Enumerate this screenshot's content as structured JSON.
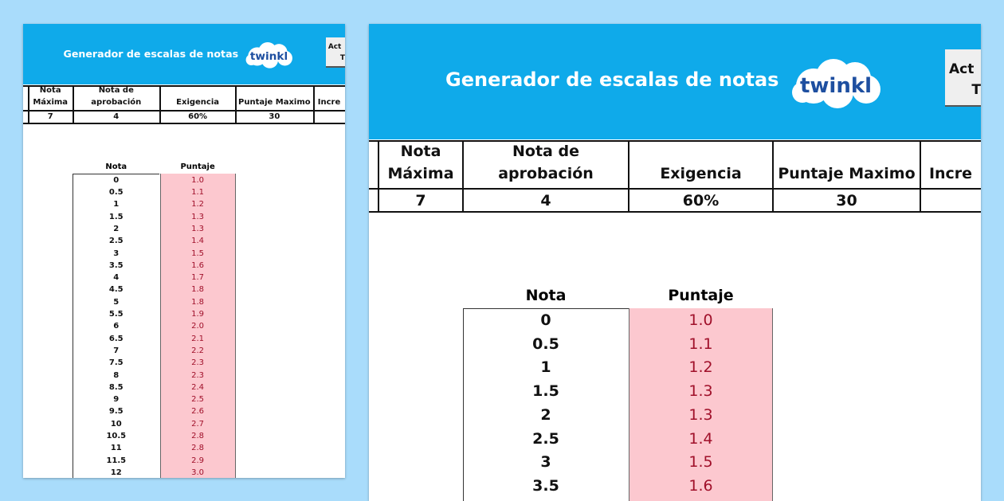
{
  "header": {
    "title": "Generador de escalas de notas",
    "logo_text": "twinkl",
    "button_label_line1": "Act",
    "button_label_line2": "T"
  },
  "params": {
    "columns": [
      "Nota Máxima",
      "Nota de aprobación",
      "Exigencia",
      "Puntaje Maximo",
      "Incre"
    ],
    "values": [
      "7",
      "4",
      "60%",
      "30",
      ""
    ]
  },
  "scale": {
    "headers": [
      "Nota",
      "Puntaje"
    ],
    "rows": [
      [
        "0",
        "1.0"
      ],
      [
        "0.5",
        "1.1"
      ],
      [
        "1",
        "1.2"
      ],
      [
        "1.5",
        "1.3"
      ],
      [
        "2",
        "1.3"
      ],
      [
        "2.5",
        "1.4"
      ],
      [
        "3",
        "1.5"
      ],
      [
        "3.5",
        "1.6"
      ],
      [
        "4",
        "1.7"
      ],
      [
        "4.5",
        "1.8"
      ],
      [
        "5",
        "1.8"
      ],
      [
        "5.5",
        "1.9"
      ],
      [
        "6",
        "2.0"
      ],
      [
        "6.5",
        "2.1"
      ],
      [
        "7",
        "2.2"
      ],
      [
        "7.5",
        "2.3"
      ],
      [
        "8",
        "2.3"
      ],
      [
        "8.5",
        "2.4"
      ],
      [
        "9",
        "2.5"
      ],
      [
        "9.5",
        "2.6"
      ],
      [
        "10",
        "2.7"
      ],
      [
        "10.5",
        "2.8"
      ],
      [
        "11",
        "2.8"
      ],
      [
        "11.5",
        "2.9"
      ],
      [
        "12",
        "3.0"
      ]
    ]
  },
  "colors": {
    "header_bg": "#0faaea",
    "puntaje_bg": "#fcc8cf",
    "puntaje_text": "#a0102a",
    "page_bg": "#a9dcfb"
  }
}
